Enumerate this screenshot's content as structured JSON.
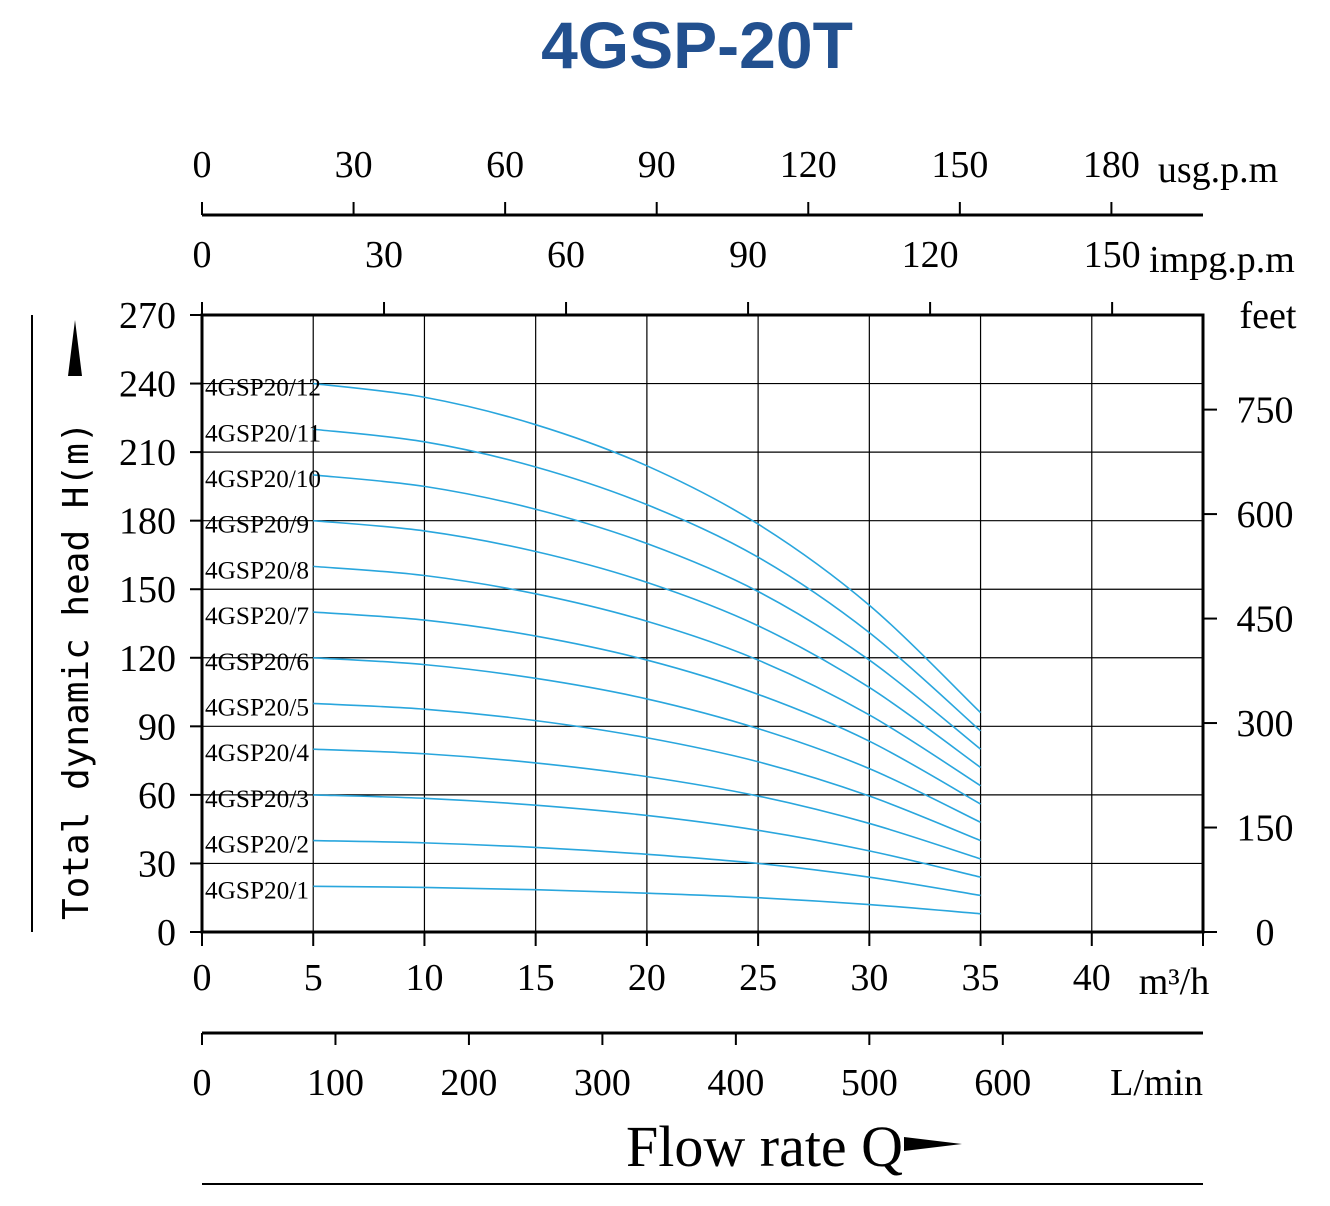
{
  "chart_data": {
    "type": "line",
    "title": "4GSP-20T",
    "title_color": "#22508f",
    "curve_color": "#29a6dd",
    "ylabel": "Total dynamic head H(m)",
    "xlabel": "Flow rate Q",
    "x_unit": "m³/h",
    "ylim": [
      0,
      270
    ],
    "xlim": [
      0,
      45
    ],
    "grid": true,
    "axes": {
      "bottom_main": {
        "unit": "m³/h",
        "ticks": [
          0,
          5,
          10,
          15,
          20,
          25,
          30,
          35,
          40
        ]
      },
      "bottom_lmin": {
        "unit": "L/min",
        "ticks": [
          0,
          100,
          200,
          300,
          400,
          500,
          600
        ]
      },
      "top_usgpm": {
        "unit": "usg.p.m",
        "ticks": [
          0,
          30,
          60,
          90,
          120,
          150,
          180
        ]
      },
      "top_impgpm": {
        "unit": "impg.p.m",
        "ticks": [
          0,
          30,
          60,
          90,
          120,
          150
        ]
      },
      "left_m": {
        "ticks": [
          0,
          30,
          60,
          90,
          120,
          150,
          180,
          210,
          240,
          270
        ]
      },
      "right_feet": {
        "unit": "feet",
        "ticks": [
          0,
          150,
          300,
          450,
          600,
          750
        ]
      }
    },
    "x": [
      5,
      10,
      15,
      20,
      25,
      30,
      35
    ],
    "series": [
      {
        "name": "4GSP20/1",
        "values": [
          20,
          19.5,
          18.5,
          17,
          15,
          12,
          8
        ]
      },
      {
        "name": "4GSP20/2",
        "values": [
          40,
          39,
          37,
          34,
          30,
          24,
          16
        ]
      },
      {
        "name": "4GSP20/3",
        "values": [
          60,
          58.5,
          55.5,
          51,
          44.5,
          35.5,
          24
        ]
      },
      {
        "name": "4GSP20/4",
        "values": [
          80,
          78,
          74,
          68,
          59.5,
          47.5,
          32
        ]
      },
      {
        "name": "4GSP20/5",
        "values": [
          100,
          97.5,
          92.5,
          85,
          74.5,
          59.5,
          40
        ]
      },
      {
        "name": "4GSP20/6",
        "values": [
          120,
          117,
          111,
          102,
          89,
          71.5,
          48
        ]
      },
      {
        "name": "4GSP20/7",
        "values": [
          140,
          136.5,
          129.5,
          119,
          104,
          83.5,
          56
        ]
      },
      {
        "name": "4GSP20/8",
        "values": [
          160,
          156,
          148,
          136,
          119,
          95,
          64
        ]
      },
      {
        "name": "4GSP20/9",
        "values": [
          180,
          175.5,
          166.5,
          153,
          134,
          107,
          72
        ]
      },
      {
        "name": "4GSP20/10",
        "values": [
          200,
          195,
          185,
          170,
          149,
          119,
          80
        ]
      },
      {
        "name": "4GSP20/11",
        "values": [
          220,
          214.5,
          203.5,
          187,
          164,
          131,
          88
        ]
      },
      {
        "name": "4GSP20/12",
        "values": [
          240,
          234,
          222,
          204,
          178.5,
          143,
          96
        ]
      }
    ]
  }
}
